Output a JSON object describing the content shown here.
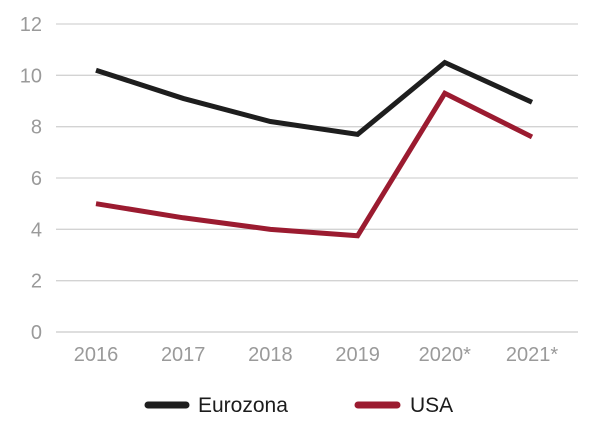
{
  "chart_data": {
    "type": "line",
    "categories": [
      "2016",
      "2017",
      "2018",
      "2019",
      "2020*",
      "2021*"
    ],
    "series": [
      {
        "name": "Eurozona",
        "values": [
          10.2,
          9.1,
          8.2,
          7.7,
          10.5,
          8.95
        ],
        "color": "#1e1e1e"
      },
      {
        "name": "USA",
        "values": [
          5.0,
          4.45,
          4.0,
          3.75,
          9.3,
          7.6
        ],
        "color": "#9b1b30"
      }
    ],
    "ylim": [
      0,
      12
    ],
    "yticks": [
      "0",
      "2",
      "4",
      "6",
      "8",
      "10",
      "12"
    ],
    "grid": true,
    "legend": "bottom-center",
    "title": "",
    "xlabel": "",
    "ylabel": ""
  }
}
